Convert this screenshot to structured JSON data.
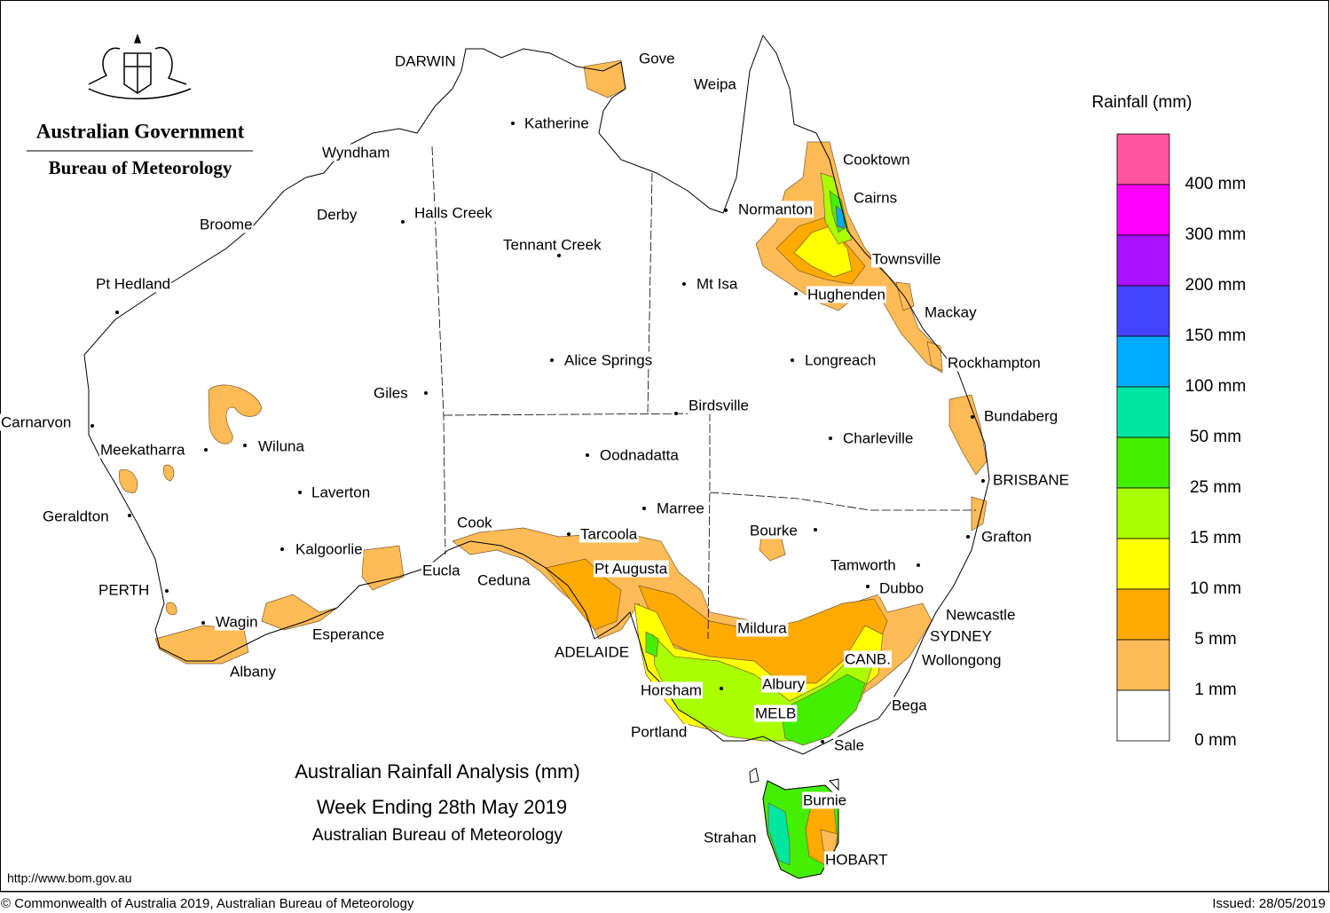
{
  "header": {
    "government": "Australian Government",
    "agency": "Bureau of Meteorology"
  },
  "title": {
    "line1": "Australian Rainfall Analysis (mm)",
    "line2": "Week Ending 28th May 2019",
    "line3": "Australian Bureau of Meteorology"
  },
  "legend": {
    "title": "Rainfall (mm)",
    "colors": [
      "#ff55a0",
      "#ff00ff",
      "#aa11ff",
      "#4444ff",
      "#00aaff",
      "#00e6a0",
      "#44ee00",
      "#aaff00",
      "#ffff00",
      "#ffaa00",
      "#ffbb55",
      "#ffffff"
    ],
    "labels": [
      "400 mm",
      "300 mm",
      "200 mm",
      "150 mm",
      "100 mm",
      "50 mm",
      "25 mm",
      "15 mm",
      "10 mm",
      "5 mm",
      "1 mm",
      "0 mm"
    ]
  },
  "places": [
    "DARWIN",
    "Gove",
    "Weipa",
    "Katherine",
    "Cooktown",
    "Wyndham",
    "Cairns",
    "Normanton",
    "Derby",
    "Halls Creek",
    "Broome",
    "Tennant Creek",
    "Townsville",
    "Pt Hedland",
    "Mt Isa",
    "Hughenden",
    "Mackay",
    "Alice Springs",
    "Longreach",
    "Rockhampton",
    "Giles",
    "Birdsville",
    "Bundaberg",
    "Carnarvon",
    "Charleville",
    "Meekatharra",
    "Wiluna",
    "Oodnadatta",
    "BRISBANE",
    "Laverton",
    "Marree",
    "Geraldton",
    "Cook",
    "Bourke",
    "Tarcoola",
    "Grafton",
    "Kalgoorlie",
    "Pt Augusta",
    "Tamworth",
    "Eucla",
    "Ceduna",
    "Dubbo",
    "PERTH",
    "Newcastle",
    "Wagin",
    "Mildura",
    "Esperance",
    "SYDNEY",
    "CANB.",
    "ADELAIDE",
    "Wollongong",
    "Albany",
    "Albury",
    "Horsham",
    "Bega",
    "MELB",
    "Portland",
    "Sale",
    "Burnie",
    "Strahan",
    "HOBART"
  ],
  "footer": {
    "url": "http://www.bom.gov.au",
    "copyright": "© Commonwealth of Australia 2019, Australian Bureau of Meteorology",
    "issued": "Issued: 28/05/2019"
  }
}
